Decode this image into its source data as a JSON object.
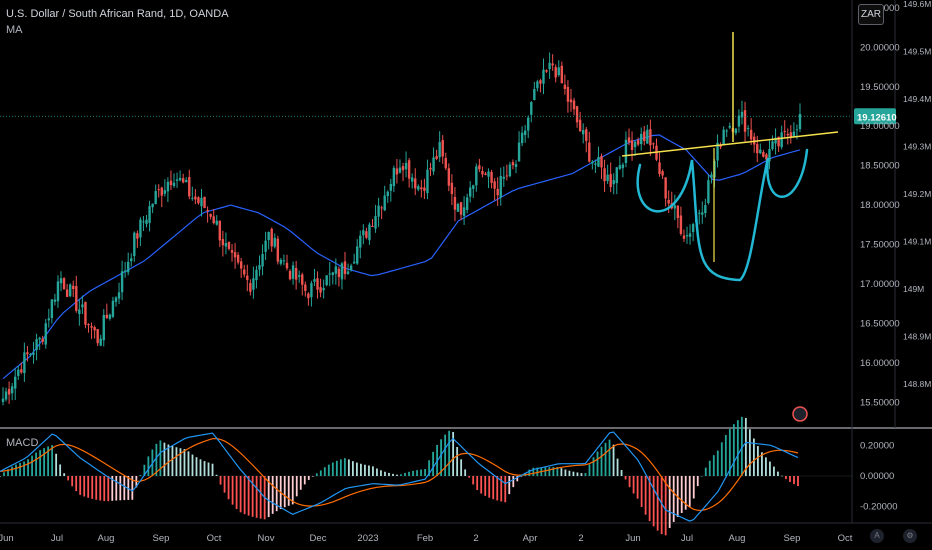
{
  "header": {
    "symbol_line": "U.S. Dollar / South African Rand, 1D, OANDA",
    "ma_label": "MA",
    "currency_button": "ZAR",
    "macd_label": "MACD"
  },
  "colors": {
    "up": "#26a69a",
    "down": "#ef5350",
    "ma": "#2962ff",
    "macd": "#2196f3",
    "signal": "#ff6d00",
    "annotation_pattern": "#22b8d4",
    "annotation_line": "#f5e24c",
    "price_tag": "#26a69a"
  },
  "chart_data": [
    {
      "type": "candlestick",
      "title": "U.S. Dollar / South African Rand, 1D, OANDA",
      "ylim": [
        15.2,
        20.6
      ],
      "price_ticks": [
        "20.50000",
        "20.00000",
        "19.50000",
        "19.00000",
        "18.50000",
        "18.00000",
        "17.50000",
        "17.00000",
        "16.50000",
        "16.00000",
        "15.50000"
      ],
      "volume_ticks": [
        "149.6M",
        "149.5M",
        "149.4M",
        "149.3M",
        "149.2M",
        "149.1M",
        "149M",
        "148.9M",
        "148.8M"
      ],
      "last_price": "19.12610",
      "x_labels": [
        "Jun",
        "Jul",
        "Aug",
        "Sep",
        "Oct",
        "Nov",
        "Dec",
        "2023",
        "Feb",
        "2",
        "Apr",
        "2",
        "Jun",
        "Jul",
        "Aug",
        "Sep",
        "Oct"
      ],
      "close_anchors": [
        15.55,
        16.0,
        16.3,
        17.1,
        16.7,
        16.3,
        16.9,
        17.6,
        18.1,
        18.4,
        18.1,
        17.9,
        17.3,
        17.0,
        17.6,
        17.2,
        16.9,
        17.05,
        17.2,
        17.6,
        18.1,
        18.6,
        18.2,
        18.7,
        17.9,
        18.5,
        18.2,
        18.5,
        19.4,
        19.8,
        19.2,
        18.6,
        18.3,
        18.8,
        18.9,
        18.1,
        17.6,
        18.1,
        19.0,
        19.1,
        18.6,
        18.8,
        19.1
      ],
      "ma_anchors": [
        15.8,
        16.1,
        16.6,
        16.9,
        17.1,
        17.3,
        17.6,
        17.9,
        18.0,
        17.9,
        17.7,
        17.4,
        17.2,
        17.1,
        17.2,
        17.3,
        17.8,
        18.0,
        18.2,
        18.3,
        18.4,
        18.6,
        18.8,
        18.9,
        18.7,
        18.3,
        18.4,
        18.6,
        18.7
      ],
      "annotations": [
        "inverse head and shoulders",
        "neckline",
        "target projection"
      ]
    },
    {
      "type": "line",
      "title": "MACD",
      "ylim": [
        -0.3,
        0.3
      ],
      "y_ticks": [
        "0.20000",
        "0.00000",
        "-0.20000"
      ],
      "series": [
        {
          "name": "MACD",
          "color": "#2196f3"
        },
        {
          "name": "Signal",
          "color": "#ff6d00"
        }
      ],
      "macd_anchors": [
        0.03,
        0.12,
        0.28,
        0.12,
        0.0,
        -0.1,
        0.15,
        0.25,
        0.28,
        0.05,
        -0.15,
        -0.25,
        -0.18,
        -0.08,
        -0.05,
        -0.06,
        -0.02,
        0.25,
        0.08,
        -0.05,
        0.04,
        0.08,
        0.08,
        0.3,
        0.1,
        -0.22,
        -0.3,
        -0.1,
        0.22,
        0.2,
        0.12
      ]
    }
  ]
}
